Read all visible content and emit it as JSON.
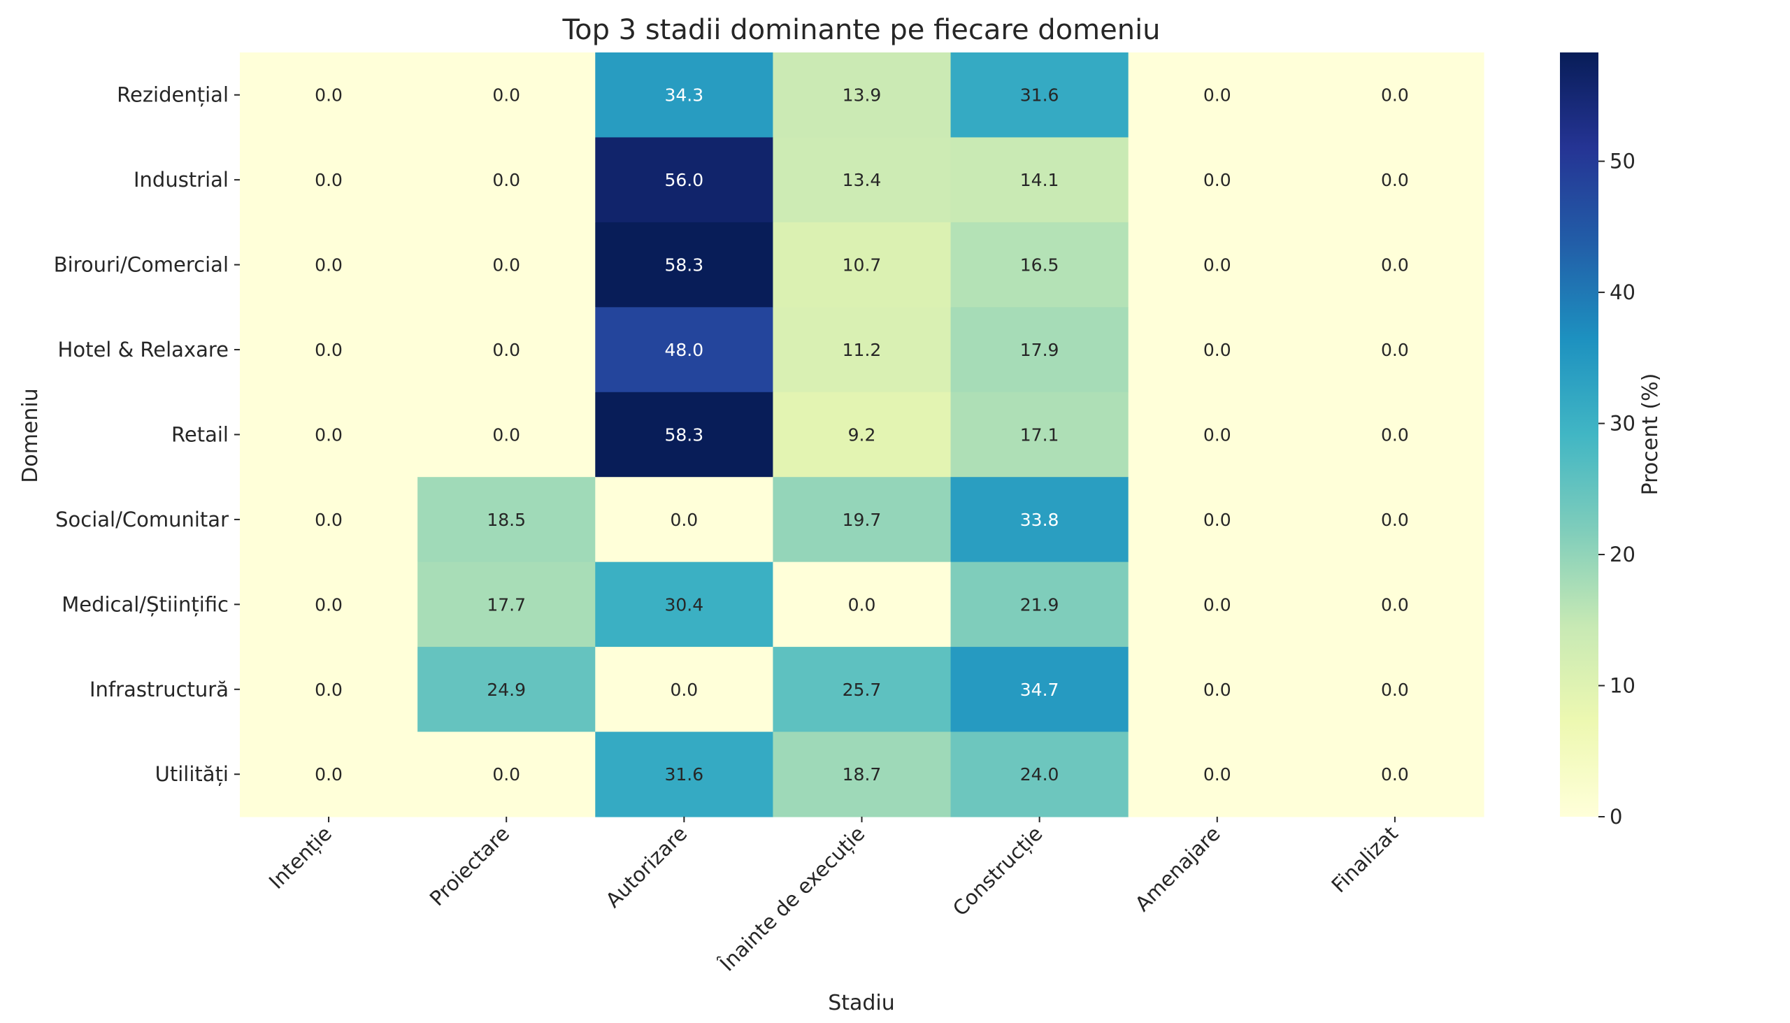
{
  "chart_data": {
    "type": "heatmap",
    "title": "Top 3 stadii dominante pe fiecare domeniu",
    "xlabel": "Stadiu",
    "ylabel": "Domeniu",
    "x_categories": [
      "Intenție",
      "Proiectare",
      "Autorizare",
      "Înainte de execuție",
      "Construcție",
      "Amenajare",
      "Finalizat"
    ],
    "y_categories": [
      "Rezidențial",
      "Industrial",
      "Birouri/Comercial",
      "Hotel & Relaxare",
      "Retail",
      "Social/Comunitar",
      "Medical/Științific",
      "Infrastructură",
      "Utilități"
    ],
    "values": [
      [
        0.0,
        0.0,
        34.3,
        13.9,
        31.6,
        0.0,
        0.0
      ],
      [
        0.0,
        0.0,
        56.0,
        13.4,
        14.1,
        0.0,
        0.0
      ],
      [
        0.0,
        0.0,
        58.3,
        10.7,
        16.5,
        0.0,
        0.0
      ],
      [
        0.0,
        0.0,
        48.0,
        11.2,
        17.9,
        0.0,
        0.0
      ],
      [
        0.0,
        0.0,
        58.3,
        9.2,
        17.1,
        0.0,
        0.0
      ],
      [
        0.0,
        18.5,
        0.0,
        19.7,
        33.8,
        0.0,
        0.0
      ],
      [
        0.0,
        17.7,
        30.4,
        0.0,
        21.9,
        0.0,
        0.0
      ],
      [
        0.0,
        24.9,
        0.0,
        25.7,
        34.7,
        0.0,
        0.0
      ],
      [
        0.0,
        0.0,
        31.6,
        18.7,
        24.0,
        0.0,
        0.0
      ]
    ],
    "value_format": "0.0",
    "colormap": "YlGnBu",
    "colorbar": {
      "label": "Procent (%)",
      "range": [
        0,
        58.3
      ],
      "ticks": [
        0,
        10,
        20,
        30,
        40,
        50
      ]
    },
    "legend_placement": "right"
  }
}
